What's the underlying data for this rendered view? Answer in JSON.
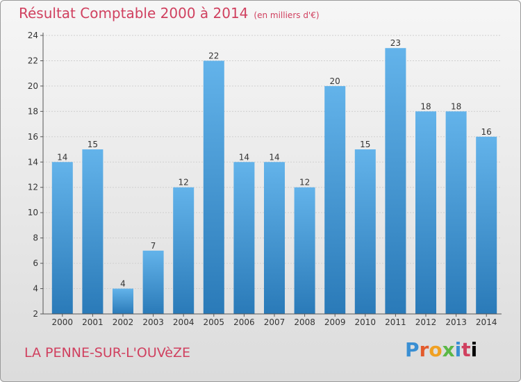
{
  "header": {
    "title": "Résultat Comptable 2000 à 2014",
    "unit": "(en milliers d'€)"
  },
  "footer": {
    "location": "LA PENNE-SUR-L'OUVèZE",
    "brand": "Proxiti"
  },
  "colors": {
    "accent": "#d0405f",
    "bar_top": "#63b3ea",
    "bar_bottom": "#2a7ab8"
  },
  "chart_data": {
    "type": "bar",
    "title": "Résultat Comptable 2000 à 2014",
    "subtitle": "(en milliers d'€)",
    "categories": [
      "2000",
      "2001",
      "2002",
      "2003",
      "2004",
      "2005",
      "2006",
      "2007",
      "2008",
      "2009",
      "2010",
      "2011",
      "2012",
      "2013",
      "2014"
    ],
    "values": [
      14,
      15,
      4,
      7,
      12,
      22,
      14,
      14,
      12,
      20,
      15,
      23,
      18,
      18,
      16
    ],
    "ylim": [
      2,
      24
    ],
    "yticks": [
      2,
      4,
      6,
      8,
      10,
      12,
      14,
      16,
      18,
      20,
      22,
      24
    ],
    "grid": true,
    "xlabel": "",
    "ylabel": ""
  }
}
